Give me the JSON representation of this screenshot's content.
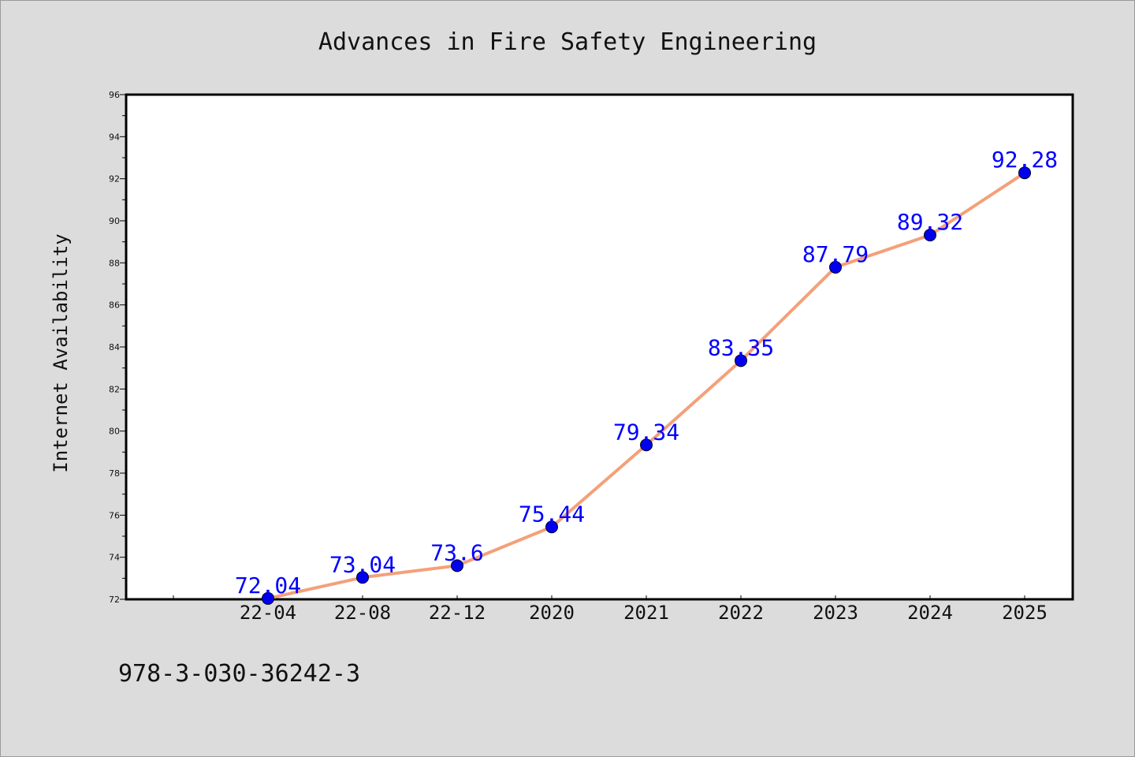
{
  "chart_data": {
    "type": "line",
    "title": "Advances in Fire Safety Engineering",
    "ylabel": "Internet Availability",
    "xlabel": "",
    "categories": [
      "22-04",
      "22-08",
      "22-12",
      "2020",
      "2021",
      "2022",
      "2023",
      "2024",
      "2025"
    ],
    "series": [
      {
        "values": [
          72.04,
          73.04,
          73.6,
          75.44,
          79.34,
          83.35,
          87.79,
          89.32,
          92.28
        ],
        "labels": [
          "72.04",
          "73.04",
          "73.6",
          "75.44",
          "79.34",
          "83.35",
          "87.79",
          "89.32",
          "92.28"
        ]
      }
    ],
    "ylim": [
      72,
      96
    ],
    "yticks": [
      "72",
      "74",
      "76",
      "78",
      "80",
      "82",
      "84",
      "86",
      "88",
      "90",
      "92",
      "94",
      "96"
    ],
    "grid": false,
    "line_color": "#f4a07a",
    "marker_color": "#0000ee",
    "label_color": "#0000ff"
  },
  "footnote": "978-3-030-36242-3"
}
